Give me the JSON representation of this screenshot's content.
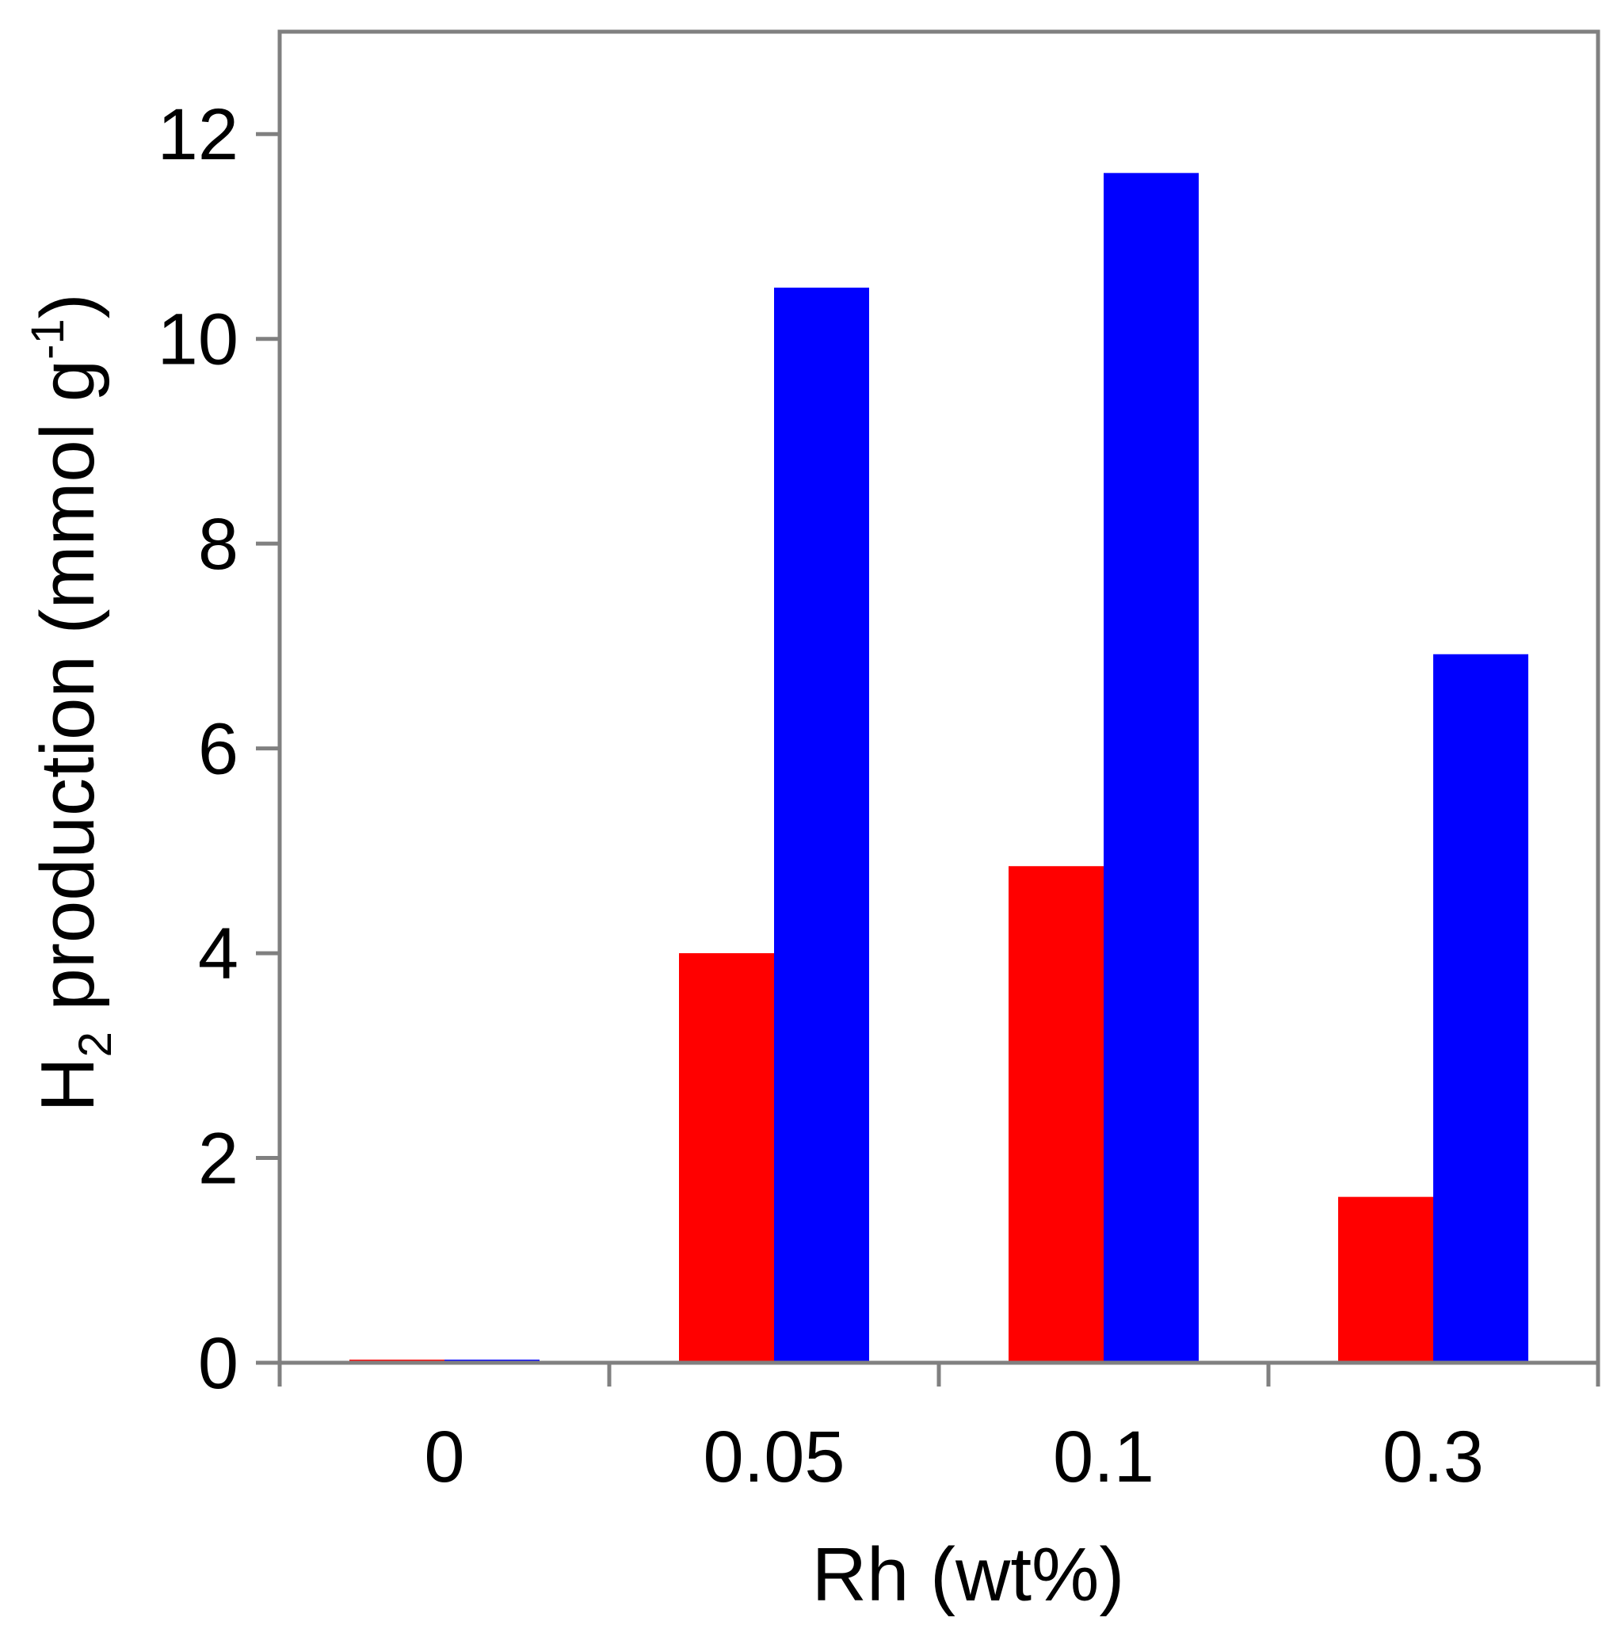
{
  "chart_data": {
    "type": "bar",
    "categories": [
      "0",
      "0.05",
      "0.1",
      "0.3"
    ],
    "series": [
      {
        "name": "series-1",
        "color": "#ff0000",
        "values": [
          0.03,
          4.0,
          4.85,
          1.62
        ]
      },
      {
        "name": "series-2",
        "color": "#0000ff",
        "values": [
          0.03,
          10.5,
          11.62,
          6.92
        ]
      }
    ],
    "title": "",
    "xlabel": "Rh (wt%)",
    "ylabel": {
      "main": "H",
      "subscript": "2",
      "rest": " production (mmol g",
      "superscript": "-1",
      "close": ")"
    },
    "ylim": [
      0,
      13
    ],
    "yticks": [
      0,
      2,
      4,
      6,
      8,
      10,
      12
    ],
    "ytick_labels": [
      "0",
      "2",
      "4",
      "6",
      "8",
      "10",
      "12"
    ],
    "grid": false,
    "legend": "none"
  }
}
